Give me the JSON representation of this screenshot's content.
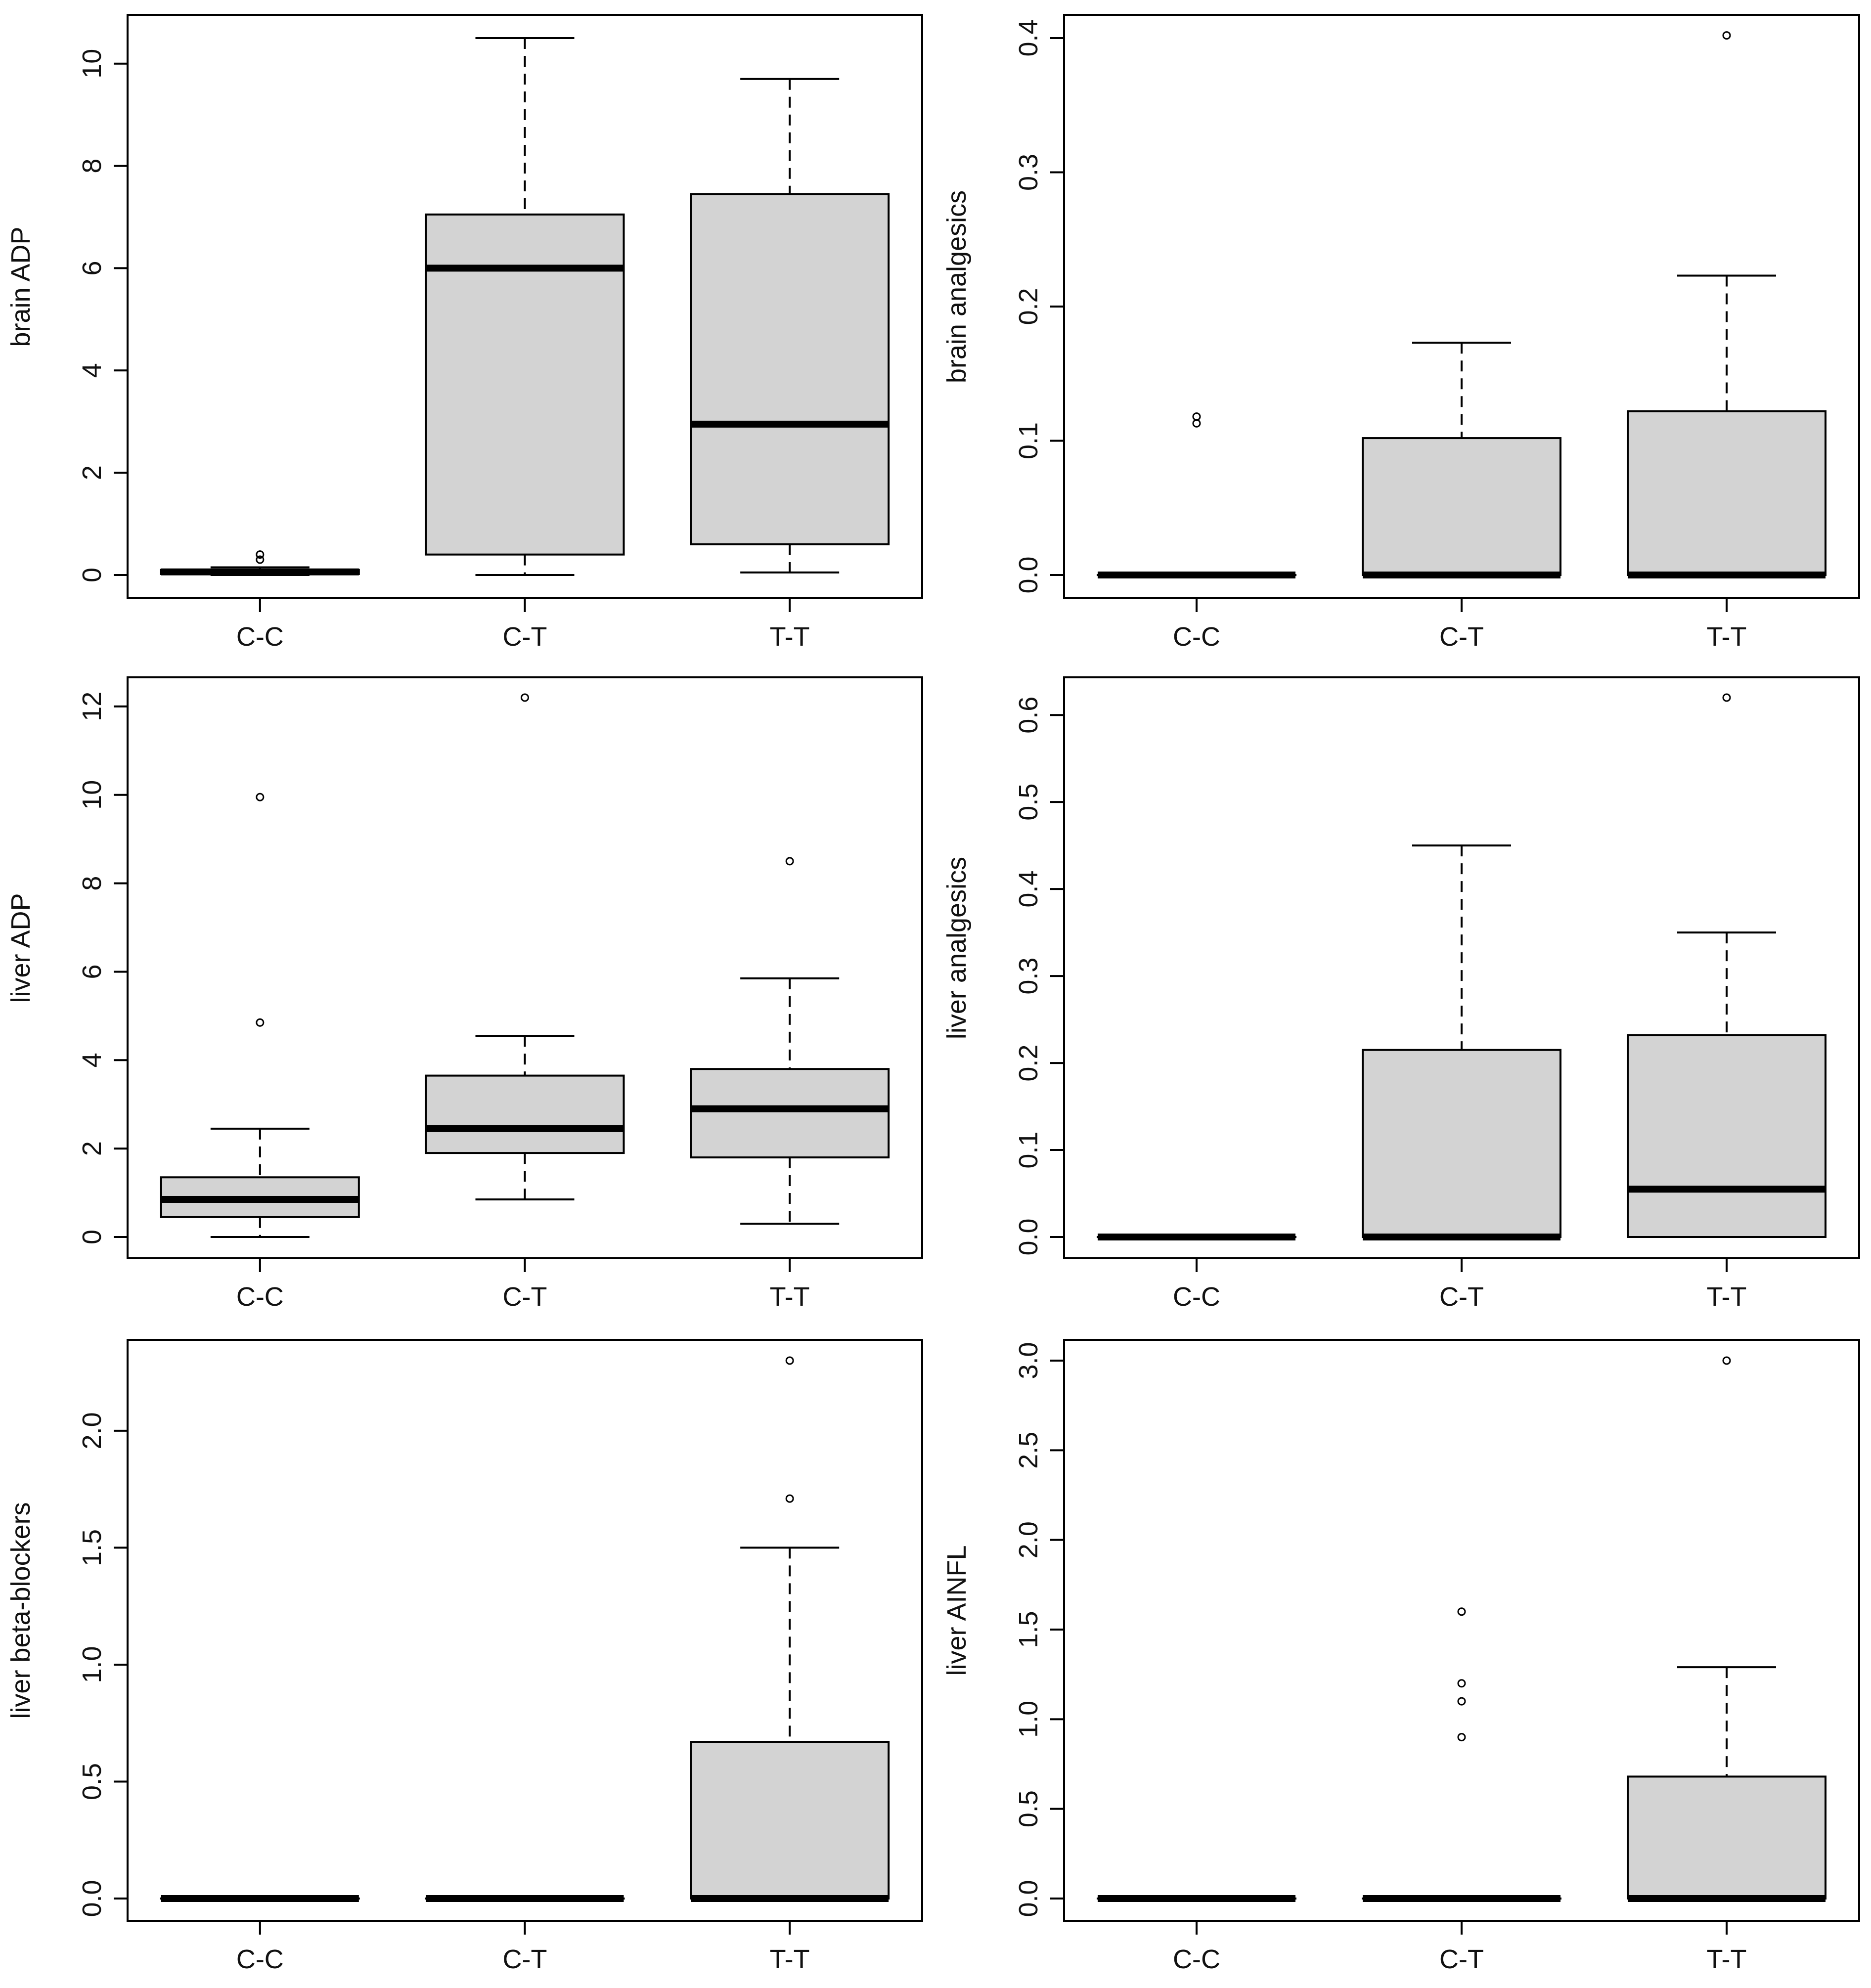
{
  "colors": {
    "box_fill": "#d3d3d3",
    "stroke": "#000000",
    "background": "#ffffff"
  },
  "chart_data": [
    {
      "type": "box",
      "ylabel": "brain ADP",
      "categories": [
        "C-C",
        "C-T",
        "T-T"
      ],
      "ylim": [
        0,
        10.5
      ],
      "yticks": [
        {
          "value": 0,
          "label": "0"
        },
        {
          "value": 2,
          "label": "2"
        },
        {
          "value": 4,
          "label": "4"
        },
        {
          "value": 6,
          "label": "6"
        },
        {
          "value": 8,
          "label": "8"
        },
        {
          "value": 10,
          "label": "10"
        }
      ],
      "boxes": [
        {
          "category": "C-C",
          "lower_whisker": 0.0,
          "q1": 0.02,
          "median": 0.06,
          "q3": 0.1,
          "upper_whisker": 0.15,
          "outliers": [
            0.3,
            0.4
          ]
        },
        {
          "category": "C-T",
          "lower_whisker": 0.0,
          "q1": 0.4,
          "median": 6.0,
          "q3": 7.05,
          "upper_whisker": 10.5,
          "outliers": []
        },
        {
          "category": "T-T",
          "lower_whisker": 0.05,
          "q1": 0.6,
          "median": 2.95,
          "q3": 7.45,
          "upper_whisker": 9.7,
          "outliers": []
        }
      ]
    },
    {
      "type": "box",
      "ylabel": "brain analgesics",
      "categories": [
        "C-C",
        "C-T",
        "T-T"
      ],
      "ylim": [
        0,
        0.4
      ],
      "yticks": [
        {
          "value": 0,
          "label": "0.0"
        },
        {
          "value": 0.1,
          "label": "0.1"
        },
        {
          "value": 0.2,
          "label": "0.2"
        },
        {
          "value": 0.3,
          "label": "0.3"
        },
        {
          "value": 0.4,
          "label": "0.4"
        }
      ],
      "boxes": [
        {
          "category": "C-C",
          "lower_whisker": 0.0,
          "q1": 0.0,
          "median": 0.0,
          "q3": 0.0,
          "upper_whisker": 0.0,
          "outliers": [
            0.113,
            0.118
          ]
        },
        {
          "category": "C-T",
          "lower_whisker": 0.0,
          "q1": 0.0,
          "median": 0.0,
          "q3": 0.102,
          "upper_whisker": 0.173,
          "outliers": []
        },
        {
          "category": "T-T",
          "lower_whisker": 0.0,
          "q1": 0.0,
          "median": 0.0,
          "q3": 0.122,
          "upper_whisker": 0.223,
          "outliers": [
            0.402
          ]
        }
      ]
    },
    {
      "type": "box",
      "ylabel": "liver ADP",
      "categories": [
        "C-C",
        "C-T",
        "T-T"
      ],
      "ylim": [
        0,
        12.2
      ],
      "yticks": [
        {
          "value": 0,
          "label": "0"
        },
        {
          "value": 2,
          "label": "2"
        },
        {
          "value": 4,
          "label": "4"
        },
        {
          "value": 6,
          "label": "6"
        },
        {
          "value": 8,
          "label": "8"
        },
        {
          "value": 10,
          "label": "10"
        },
        {
          "value": 12,
          "label": "12"
        }
      ],
      "boxes": [
        {
          "category": "C-C",
          "lower_whisker": 0.0,
          "q1": 0.45,
          "median": 0.85,
          "q3": 1.35,
          "upper_whisker": 2.45,
          "outliers": [
            4.85,
            9.95
          ]
        },
        {
          "category": "C-T",
          "lower_whisker": 0.85,
          "q1": 1.9,
          "median": 2.45,
          "q3": 3.65,
          "upper_whisker": 4.55,
          "outliers": [
            12.2
          ]
        },
        {
          "category": "T-T",
          "lower_whisker": 0.3,
          "q1": 1.8,
          "median": 2.9,
          "q3": 3.8,
          "upper_whisker": 5.85,
          "outliers": [
            8.5
          ]
        }
      ]
    },
    {
      "type": "box",
      "ylabel": "liver analgesics",
      "categories": [
        "C-C",
        "C-T",
        "T-T"
      ],
      "ylim": [
        0,
        0.62
      ],
      "yticks": [
        {
          "value": 0,
          "label": "0.0"
        },
        {
          "value": 0.1,
          "label": "0.1"
        },
        {
          "value": 0.2,
          "label": "0.2"
        },
        {
          "value": 0.3,
          "label": "0.3"
        },
        {
          "value": 0.4,
          "label": "0.4"
        },
        {
          "value": 0.5,
          "label": "0.5"
        },
        {
          "value": 0.6,
          "label": "0.6"
        }
      ],
      "boxes": [
        {
          "category": "C-C",
          "lower_whisker": 0.0,
          "q1": 0.0,
          "median": 0.0,
          "q3": 0.0,
          "upper_whisker": 0.0,
          "outliers": []
        },
        {
          "category": "C-T",
          "lower_whisker": 0.0,
          "q1": 0.0,
          "median": 0.0,
          "q3": 0.215,
          "upper_whisker": 0.45,
          "outliers": []
        },
        {
          "category": "T-T",
          "lower_whisker": 0.0,
          "q1": 0.0,
          "median": 0.055,
          "q3": 0.232,
          "upper_whisker": 0.35,
          "outliers": [
            0.62
          ]
        }
      ]
    },
    {
      "type": "box",
      "ylabel": "liver beta-blockers",
      "categories": [
        "C-C",
        "C-T",
        "T-T"
      ],
      "ylim": [
        0,
        2.3
      ],
      "yticks": [
        {
          "value": 0,
          "label": "0.0"
        },
        {
          "value": 0.5,
          "label": "0.5"
        },
        {
          "value": 1,
          "label": "1.0"
        },
        {
          "value": 1.5,
          "label": "1.5"
        },
        {
          "value": 2,
          "label": "2.0"
        }
      ],
      "boxes": [
        {
          "category": "C-C",
          "lower_whisker": 0.0,
          "q1": 0.0,
          "median": 0.0,
          "q3": 0.0,
          "upper_whisker": 0.0,
          "outliers": []
        },
        {
          "category": "C-T",
          "lower_whisker": 0.0,
          "q1": 0.0,
          "median": 0.0,
          "q3": 0.0,
          "upper_whisker": 0.0,
          "outliers": []
        },
        {
          "category": "T-T",
          "lower_whisker": 0.0,
          "q1": 0.0,
          "median": 0.0,
          "q3": 0.67,
          "upper_whisker": 1.5,
          "outliers": [
            1.71,
            2.3
          ]
        }
      ]
    },
    {
      "type": "box",
      "ylabel": "liver AINFL",
      "categories": [
        "C-C",
        "C-T",
        "T-T"
      ],
      "ylim": [
        0,
        3.0
      ],
      "yticks": [
        {
          "value": 0,
          "label": "0.0"
        },
        {
          "value": 0.5,
          "label": "0.5"
        },
        {
          "value": 1,
          "label": "1.0"
        },
        {
          "value": 1.5,
          "label": "1.5"
        },
        {
          "value": 2,
          "label": "2.0"
        },
        {
          "value": 2.5,
          "label": "2.5"
        },
        {
          "value": 3,
          "label": "3.0"
        }
      ],
      "boxes": [
        {
          "category": "C-C",
          "lower_whisker": 0.0,
          "q1": 0.0,
          "median": 0.0,
          "q3": 0.0,
          "upper_whisker": 0.0,
          "outliers": []
        },
        {
          "category": "C-T",
          "lower_whisker": 0.0,
          "q1": 0.0,
          "median": 0.0,
          "q3": 0.0,
          "upper_whisker": 0.0,
          "outliers": [
            0.9,
            1.1,
            1.2,
            1.6
          ]
        },
        {
          "category": "T-T",
          "lower_whisker": 0.0,
          "q1": 0.0,
          "median": 0.0,
          "q3": 0.68,
          "upper_whisker": 1.29,
          "outliers": [
            3.0
          ]
        }
      ]
    }
  ]
}
